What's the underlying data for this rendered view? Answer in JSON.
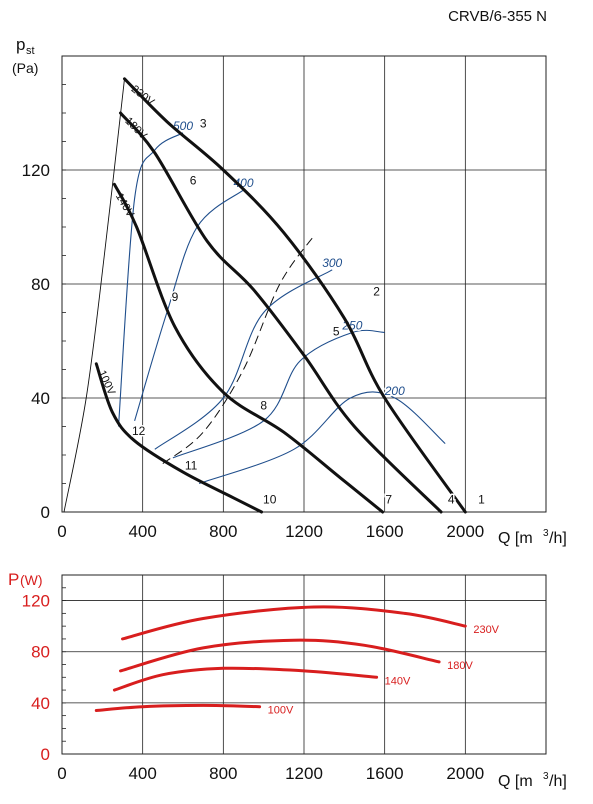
{
  "model_label": "CRVB/6-355 N",
  "colors": {
    "curve": "#111111",
    "iso": "#1f4e8c",
    "power": "#d81e1e",
    "grid": "#222222"
  },
  "chart_data": [
    {
      "type": "line",
      "title": "",
      "y_symbol": "p",
      "y_symbol_sub": "st",
      "y_unit": "(Pa)",
      "x_symbol": "Q",
      "x_unit": "[m",
      "x_unit_sup": "3",
      "x_unit_end": "/h]",
      "xlim": [
        0,
        2400
      ],
      "ylim": [
        0,
        160
      ],
      "xticks": [
        0,
        400,
        800,
        1200,
        1600,
        2000
      ],
      "yticks": [
        0,
        40,
        80,
        120
      ],
      "grid": true,
      "fan_curves": [
        {
          "name": "230V",
          "points": [
            [
              310,
              152
            ],
            [
              520,
              137
            ],
            [
              800,
              120
            ],
            [
              1100,
              98
            ],
            [
              1400,
              68
            ],
            [
              1600,
              40
            ],
            [
              2000,
              0
            ]
          ]
        },
        {
          "name": "180V",
          "points": [
            [
              290,
              140
            ],
            [
              460,
              126
            ],
            [
              720,
              95
            ],
            [
              950,
              78
            ],
            [
              1200,
              55
            ],
            [
              1450,
              30
            ],
            [
              1880,
              0
            ]
          ]
        },
        {
          "name": "140V",
          "points": [
            [
              260,
              115
            ],
            [
              370,
              100
            ],
            [
              560,
              65
            ],
            [
              800,
              42
            ],
            [
              1100,
              28
            ],
            [
              1380,
              12
            ],
            [
              1590,
              0
            ]
          ]
        },
        {
          "name": "100V",
          "points": [
            [
              170,
              52
            ],
            [
              250,
              35
            ],
            [
              360,
              25
            ],
            [
              600,
              14
            ],
            [
              850,
              5
            ],
            [
              990,
              0
            ]
          ]
        }
      ],
      "system_line_0": {
        "points": [
          [
            10,
            0
          ],
          [
            120,
            40
          ],
          [
            210,
            90
          ],
          [
            310,
            152
          ]
        ]
      },
      "efficiency_line": {
        "points": [
          [
            500,
            17
          ],
          [
            700,
            28
          ],
          [
            900,
            50
          ],
          [
            1080,
            80
          ],
          [
            1250,
            97
          ]
        ]
      },
      "iso_curves": [
        {
          "label": "500",
          "points": [
            [
              280,
              30
            ],
            [
              360,
              110
            ],
            [
              460,
              127
            ],
            [
              600,
              133
            ]
          ]
        },
        {
          "label": "400",
          "points": [
            [
              360,
              32
            ],
            [
              520,
              70
            ],
            [
              670,
              100
            ],
            [
              900,
              113
            ]
          ]
        },
        {
          "label": "300",
          "points": [
            [
              460,
              22
            ],
            [
              800,
              40
            ],
            [
              1000,
              70
            ],
            [
              1340,
              85
            ]
          ]
        },
        {
          "label": "250",
          "points": [
            [
              550,
              19
            ],
            [
              1000,
              32
            ],
            [
              1180,
              53
            ],
            [
              1440,
              63
            ],
            [
              1600,
              63
            ]
          ]
        },
        {
          "label": "200",
          "points": [
            [
              680,
              10
            ],
            [
              1150,
              22
            ],
            [
              1430,
              40
            ],
            [
              1650,
              40
            ],
            [
              1900,
              24
            ]
          ]
        }
      ],
      "point_labels": [
        {
          "text": "1",
          "x": 2080,
          "y": 3
        },
        {
          "text": "2",
          "x": 1560,
          "y": 76
        },
        {
          "text": "3",
          "x": 700,
          "y": 135
        },
        {
          "text": "4",
          "x": 1930,
          "y": 3
        },
        {
          "text": "5",
          "x": 1360,
          "y": 62
        },
        {
          "text": "6",
          "x": 650,
          "y": 115
        },
        {
          "text": "7",
          "x": 1620,
          "y": 3
        },
        {
          "text": "8",
          "x": 1000,
          "y": 36
        },
        {
          "text": "9",
          "x": 560,
          "y": 74
        },
        {
          "text": "10",
          "x": 1030,
          "y": 3
        },
        {
          "text": "11",
          "x": 640,
          "y": 15
        },
        {
          "text": "12",
          "x": 380,
          "y": 27
        }
      ],
      "voltage_labels": [
        {
          "text": "230V",
          "x": 340,
          "y": 148,
          "angle": 38
        },
        {
          "text": "180V",
          "x": 310,
          "y": 137,
          "angle": 45
        },
        {
          "text": "140V",
          "x": 265,
          "y": 111,
          "angle": 60
        },
        {
          "text": "100V",
          "x": 180,
          "y": 49,
          "angle": 65
        }
      ]
    },
    {
      "type": "line",
      "title": "",
      "y_symbol": "P",
      "y_unit": "(W)",
      "x_symbol": "Q",
      "x_unit": "[m",
      "x_unit_sup": "3",
      "x_unit_end": "/h]",
      "xlim": [
        0,
        2400
      ],
      "ylim": [
        0,
        140
      ],
      "xticks": [
        0,
        400,
        800,
        1200,
        1600,
        2000
      ],
      "yticks": [
        0,
        40,
        80,
        120
      ],
      "grid": true,
      "series": [
        {
          "name": "230V",
          "points": [
            [
              300,
              90
            ],
            [
              700,
              106
            ],
            [
              1250,
              115
            ],
            [
              1700,
              110
            ],
            [
              2000,
              100
            ]
          ]
        },
        {
          "name": "180V",
          "points": [
            [
              290,
              65
            ],
            [
              700,
              83
            ],
            [
              1150,
              89
            ],
            [
              1500,
              85
            ],
            [
              1870,
              72
            ]
          ]
        },
        {
          "name": "140V",
          "points": [
            [
              260,
              50
            ],
            [
              500,
              62
            ],
            [
              800,
              67
            ],
            [
              1200,
              65
            ],
            [
              1560,
              60
            ]
          ]
        },
        {
          "name": "100V",
          "points": [
            [
              170,
              34
            ],
            [
              400,
              37
            ],
            [
              700,
              38
            ],
            [
              980,
              37
            ]
          ]
        }
      ]
    }
  ]
}
